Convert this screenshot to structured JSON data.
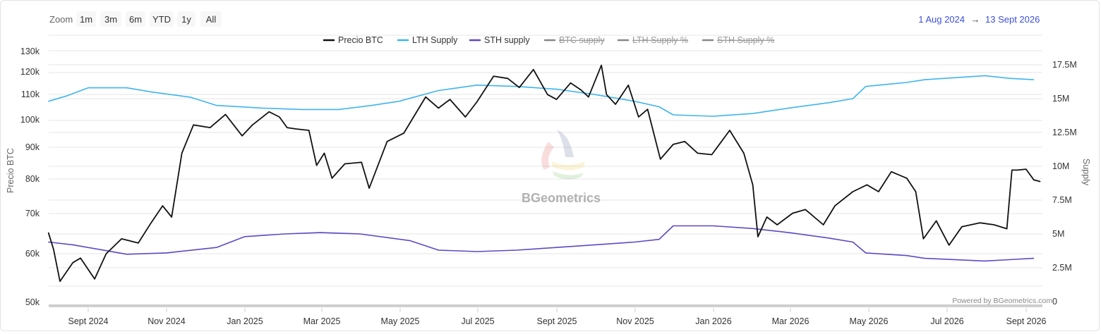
{
  "toolbar": {
    "zoom_label": "Zoom",
    "zoom_buttons": [
      "1m",
      "3m",
      "6m",
      "YTD",
      "1y",
      "All"
    ],
    "range_from": "1 Aug 2024",
    "range_arrow": "→",
    "range_to": "13 Sept 2026"
  },
  "watermark": "BGeometrics",
  "credit": "Powered by BGeometrics.com",
  "colors": {
    "price": "#111111",
    "lth": "#3fb4ec",
    "sth": "#5f48c2",
    "hidden": "#888888",
    "grid": "#e6e6e6",
    "navigator": "#cfcfcf"
  },
  "chart_data": {
    "type": "line",
    "legend": {
      "placement": "top-center",
      "items": [
        {
          "name": "Precio BTC",
          "visible": true
        },
        {
          "name": "LTH Supply",
          "visible": true
        },
        {
          "name": "STH supply",
          "visible": true
        },
        {
          "name": "BTC supply",
          "visible": false
        },
        {
          "name": "LTH Supply %",
          "visible": false
        },
        {
          "name": "STH Supply %",
          "visible": false
        }
      ]
    },
    "x_axis": {
      "range": [
        "2024-08-01",
        "2026-09-13"
      ],
      "ticks": [
        "Sept 2024",
        "Nov 2024",
        "Jan 2025",
        "Mar 2025",
        "May 2025",
        "Jul 2025",
        "Sept 2025",
        "Nov 2025",
        "Jan 2026",
        "Mar 2026",
        "May 2026",
        "Jul 2026",
        "Sept 2026"
      ]
    },
    "y_left": {
      "label": "Precio BTC",
      "scale": "log",
      "range": [
        50000,
        130000
      ],
      "ticks": [
        "130k",
        "120k",
        "110k",
        "100k",
        "90k",
        "80k",
        "70k",
        "60k",
        "50k"
      ],
      "tick_values": [
        130000,
        120000,
        110000,
        100000,
        90000,
        80000,
        70000,
        60000,
        50000
      ]
    },
    "y_right": {
      "label": "Supply",
      "scale": "linear",
      "range": [
        0,
        17500000
      ],
      "ticks": [
        "17.5M",
        "15M",
        "12.5M",
        "10M",
        "7.5M",
        "5M",
        "2.5M",
        "0"
      ],
      "tick_values": [
        17500000,
        15000000,
        12500000,
        10000000,
        7500000,
        5000000,
        2500000,
        0
      ]
    },
    "grid": true,
    "series": [
      {
        "name": "Precio BTC",
        "axis": "left",
        "x": [
          "2024-08-01",
          "2024-08-05",
          "2024-08-10",
          "2024-08-20",
          "2024-08-26",
          "2024-09-06",
          "2024-09-15",
          "2024-09-27",
          "2024-10-10",
          "2024-10-20",
          "2024-10-29",
          "2024-11-05",
          "2024-11-13",
          "2024-11-22",
          "2024-12-05",
          "2024-12-17",
          "2024-12-30",
          "2025-01-07",
          "2025-01-20",
          "2025-01-28",
          "2025-02-03",
          "2025-02-10",
          "2025-02-20",
          "2025-02-26",
          "2025-03-04",
          "2025-03-10",
          "2025-03-20",
          "2025-04-02",
          "2025-04-08",
          "2025-04-22",
          "2025-05-05",
          "2025-05-22",
          "2025-06-01",
          "2025-06-10",
          "2025-06-22",
          "2025-07-01",
          "2025-07-14",
          "2025-07-25",
          "2025-08-03",
          "2025-08-14",
          "2025-08-25",
          "2025-09-01",
          "2025-09-12",
          "2025-09-20",
          "2025-09-26",
          "2025-10-06",
          "2025-10-10",
          "2025-10-17",
          "2025-10-27",
          "2025-11-04",
          "2025-11-11",
          "2025-11-21",
          "2025-12-01",
          "2025-12-10",
          "2025-12-20",
          "2025-12-31",
          "2026-01-14",
          "2026-01-25",
          "2026-02-01",
          "2026-02-05",
          "2026-02-12",
          "2026-02-20",
          "2026-03-04",
          "2026-03-14",
          "2026-03-28",
          "2026-04-06",
          "2026-04-20",
          "2026-05-01",
          "2026-05-10",
          "2026-05-20",
          "2026-06-01",
          "2026-06-08",
          "2026-06-14",
          "2026-06-24",
          "2026-07-04",
          "2026-07-14",
          "2026-07-28",
          "2026-08-08",
          "2026-08-18",
          "2026-08-22",
          "2026-08-26",
          "2026-09-02",
          "2026-09-08",
          "2026-09-13"
        ],
        "values": [
          65000,
          61000,
          54000,
          58000,
          59000,
          54500,
          60000,
          63500,
          62500,
          67500,
          72000,
          69000,
          88000,
          98000,
          97000,
          102000,
          94000,
          98000,
          103000,
          101000,
          97000,
          96500,
          96000,
          84000,
          88000,
          80000,
          84500,
          85000,
          77000,
          92000,
          95000,
          109000,
          104500,
          108000,
          101000,
          107000,
          118000,
          117000,
          113000,
          121000,
          110000,
          108000,
          115000,
          112000,
          109000,
          123000,
          110000,
          106000,
          114000,
          101000,
          104000,
          86000,
          91000,
          92000,
          88000,
          87500,
          96000,
          88000,
          78000,
          64000,
          69000,
          67000,
          70000,
          71000,
          67000,
          72000,
          76000,
          78000,
          76000,
          82000,
          80000,
          76000,
          63500,
          68000,
          62000,
          66500,
          67500,
          67000,
          66000,
          82500,
          82500,
          82800,
          79500,
          79000
        ]
      },
      {
        "name": "LTH Supply",
        "axis": "right",
        "x": [
          "2024-08-01",
          "2024-08-15",
          "2024-09-01",
          "2024-10-01",
          "2024-10-20",
          "2024-11-20",
          "2024-12-10",
          "2025-01-15",
          "2025-02-15",
          "2025-03-15",
          "2025-04-10",
          "2025-05-01",
          "2025-06-01",
          "2025-07-01",
          "2025-08-01",
          "2025-09-01",
          "2025-10-01",
          "2025-11-01",
          "2025-11-20",
          "2025-12-01",
          "2026-01-01",
          "2026-02-01",
          "2026-03-01",
          "2026-04-01",
          "2026-04-20",
          "2026-04-30",
          "2026-06-01",
          "2026-06-15",
          "2026-08-01",
          "2026-08-20",
          "2026-09-08"
        ],
        "values": [
          14800000,
          15200000,
          15800000,
          15800000,
          15500000,
          15100000,
          14500000,
          14300000,
          14200000,
          14200000,
          14500000,
          14800000,
          15600000,
          16000000,
          15900000,
          15700000,
          15300000,
          14800000,
          14400000,
          13800000,
          13700000,
          13900000,
          14300000,
          14700000,
          15000000,
          15900000,
          16200000,
          16400000,
          16700000,
          16500000,
          16400000
        ]
      },
      {
        "name": "STH supply",
        "axis": "right",
        "x": [
          "2024-08-01",
          "2024-08-20",
          "2024-10-01",
          "2024-11-01",
          "2024-12-10",
          "2025-01-01",
          "2025-02-01",
          "2025-03-01",
          "2025-04-01",
          "2025-05-10",
          "2025-06-01",
          "2025-07-01",
          "2025-08-01",
          "2025-09-01",
          "2025-10-01",
          "2025-11-01",
          "2025-11-20",
          "2025-12-01",
          "2026-01-01",
          "2026-02-01",
          "2026-03-01",
          "2026-04-01",
          "2026-04-20",
          "2026-04-30",
          "2026-06-01",
          "2026-06-15",
          "2026-08-01",
          "2026-08-20",
          "2026-09-08"
        ],
        "values": [
          4400000,
          4200000,
          3500000,
          3600000,
          4000000,
          4800000,
          5000000,
          5100000,
          5000000,
          4500000,
          3800000,
          3700000,
          3800000,
          4000000,
          4200000,
          4400000,
          4600000,
          5600000,
          5600000,
          5400000,
          5100000,
          4700000,
          4400000,
          3600000,
          3400000,
          3200000,
          3000000,
          3100000,
          3200000
        ]
      }
    ]
  }
}
